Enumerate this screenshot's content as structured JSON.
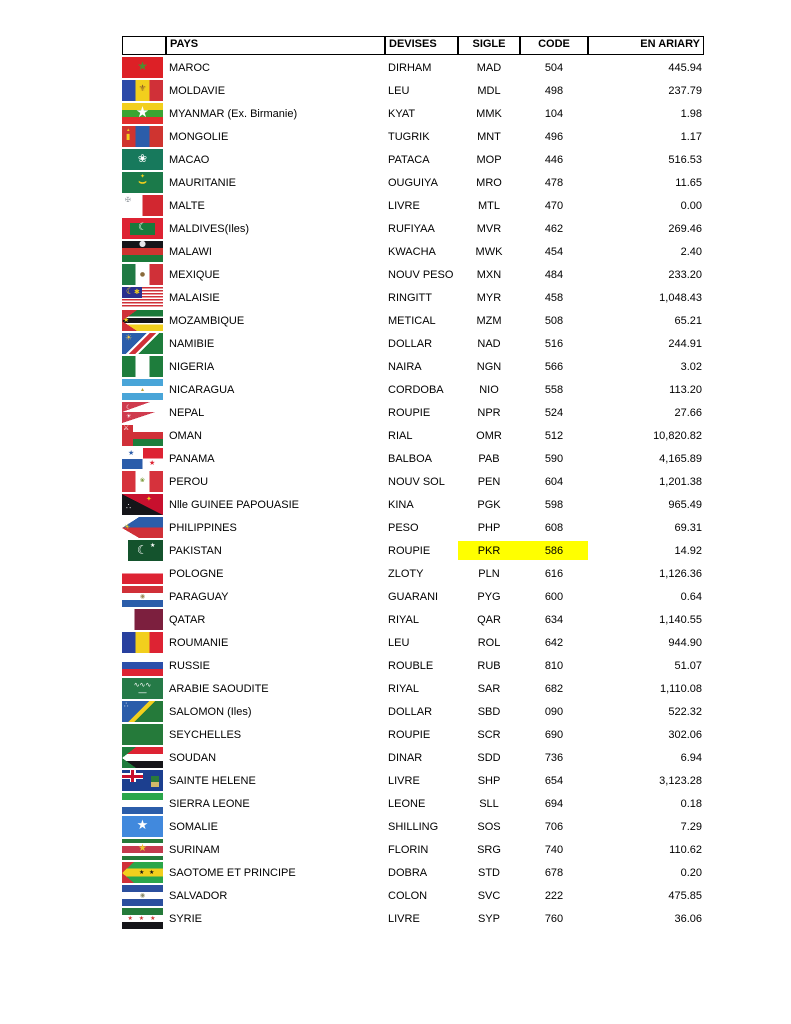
{
  "table": {
    "headers": {
      "flag": "",
      "pays": "PAYS",
      "devises": "DEVISES",
      "sigle": "SIGLE",
      "code": "CODE",
      "ariary": "EN ARIARY"
    },
    "highlight_color": "#ffff00",
    "rows": [
      {
        "pays": "MAROC",
        "devise": "DIRHAM",
        "sigle": "MAD",
        "code": "504",
        "ariary": "445.94",
        "flag": {
          "css": "background:#dd2026",
          "emblems": [
            {
              "ch": "★",
              "css": "color:#4a8f2f;font-size:12px;left:0;right:0;top:3px;text-align:center"
            }
          ]
        }
      },
      {
        "pays": "MOLDAVIE",
        "devise": "LEU",
        "sigle": "MDL",
        "code": "498",
        "ariary": "237.79",
        "flag": {
          "css": "background:linear-gradient(90deg,#2b49a8 0 33%,#f2cf1d 33% 67%,#d03038 67%)",
          "emblems": [
            {
              "ch": "⚜",
              "css": "color:#8a5a2a;font-size:9px;left:0;right:0;top:5px;text-align:center"
            }
          ]
        }
      },
      {
        "pays": "MYANMAR (Ex. Birmanie)",
        "devise": "KYAT",
        "sigle": "MMK",
        "code": "104",
        "ariary": "1.98",
        "flag": {
          "css": "background:linear-gradient(#f2cf1d 0 33%,#3aa432 33% 67%,#e32d2d 67%)",
          "emblems": [
            {
              "ch": "★",
              "css": "color:#fff;font-size:15px;left:0;right:0;top:2px;text-align:center"
            }
          ]
        }
      },
      {
        "pays": "MONGOLIE",
        "devise": "TUGRIK",
        "sigle": "MNT",
        "code": "496",
        "ariary": "1.17",
        "flag": {
          "css": "background:linear-gradient(90deg,#cf3430 0 33%,#2b5daa 33% 67%,#cf3430 67%)",
          "emblems": [
            {
              "ch": "▮",
              "css": "color:#f2cf1d;font-size:8px;left:4px;top:7px"
            },
            {
              "ch": "▴",
              "css": "color:#f2cf1d;font-size:5px;left:5px;top:2px"
            }
          ]
        }
      },
      {
        "pays": "MACAO",
        "devise": "PATACA",
        "sigle": "MOP",
        "code": "446",
        "ariary": "516.53",
        "flag": {
          "css": "background:#17795c",
          "emblems": [
            {
              "ch": "❀",
              "css": "color:#fff;font-size:11px;left:0;right:0;top:4px;text-align:center"
            }
          ]
        }
      },
      {
        "pays": "MAURITANIE",
        "devise": "OUGUIYA",
        "sigle": "MRO",
        "code": "478",
        "ariary": "11.65",
        "flag": {
          "css": "background:#1b7a4a",
          "emblems": [
            {
              "ch": "⌣",
              "css": "color:#f2cf1d;font-size:13px;font-weight:700;left:0;right:0;top:4px;text-align:center"
            },
            {
              "ch": "✦",
              "css": "color:#f2cf1d;font-size:6px;left:0;right:0;top:2px;text-align:center"
            }
          ]
        }
      },
      {
        "pays": "MALTE",
        "devise": "LIVRE",
        "sigle": "MTL",
        "code": "470",
        "ariary": "0.00",
        "flag": {
          "css": "background:linear-gradient(90deg,#fff 0 50%,#d22730 50%)",
          "emblems": [
            {
              "ch": "✠",
              "css": "color:#9aa0a6;font-size:7px;left:3px;top:2px"
            }
          ]
        }
      },
      {
        "pays": "MALDIVES(Iles)",
        "devise": "RUFIYAA",
        "sigle": "MVR",
        "code": "462",
        "ariary": "269.46",
        "flag": {
          "css": "background:linear-gradient(#187a3c,#187a3c) 50% 50%/25px 12px no-repeat,linear-gradient(#dd2333,#dd2333)",
          "emblems": [
            {
              "ch": "☾",
              "css": "color:#fff;font-size:10px;left:0;right:0;top:5px;text-align:center"
            }
          ]
        }
      },
      {
        "pays": "MALAWI",
        "devise": "KWACHA",
        "sigle": "MWK",
        "code": "454",
        "ariary": "2.40",
        "flag": {
          "css": "background:linear-gradient(#151519 0 33%,#cf3430 33% 67%,#1b7a3a 67%)",
          "emblems": [
            {
              "ch": "●",
              "css": "color:#e6e6ea;font-size:8px;left:0;right:0;top:-1px;text-align:center"
            }
          ]
        }
      },
      {
        "pays": "MEXIQUE",
        "devise": "NOUV PESO",
        "sigle": "MXN",
        "code": "484",
        "ariary": "233.20",
        "flag": {
          "css": "background:linear-gradient(90deg,#207a44 0 33%,#fff 33% 67%,#d03038 67%)",
          "emblems": [
            {
              "ch": "●",
              "css": "color:#8a6a3a;font-size:6px;left:0;right:0;top:8px;text-align:center"
            }
          ]
        }
      },
      {
        "pays": "MALAISIE",
        "devise": "RINGITT",
        "sigle": "MYR",
        "code": "458",
        "ariary": "1,048.43",
        "flag": {
          "css": "background:linear-gradient(#2b2f8f,#2b2f8f) 0 0/20px 11px no-repeat,repeating-linear-gradient(#d03038 0 1.5px,#fff 1.5px 3px)",
          "emblems": [
            {
              "ch": "☾",
              "css": "color:#f2cf1d;font-size:9px;left:4px;top:1px"
            },
            {
              "ch": "✱",
              "css": "color:#f2cf1d;font-size:7px;left:12px;top:2px"
            }
          ]
        }
      },
      {
        "pays": "MOZAMBIQUE",
        "devise": "METICAL",
        "sigle": "MZM",
        "code": "508",
        "ariary": "65.21",
        "flag": {
          "css": "background:linear-gradient(to bottom right,#d03038 50%,transparent 50.5%) 0 0/15px 11px no-repeat,linear-gradient(to top right,#d03038 50%,transparent 50.5%) 0 11px/15px 10px no-repeat,linear-gradient(#1b7a3a 0 30%,#fff 30% 37%,#151519 37% 63%,#fff 63% 70%,#f2cf1d 70%)",
          "emblems": [
            {
              "ch": "★",
              "css": "color:#f2cf1d;font-size:7px;left:1px;top:7px"
            }
          ]
        }
      },
      {
        "pays": "NAMIBIE",
        "devise": "DOLLAR",
        "sigle": "NAD",
        "code": "516",
        "ariary": "244.91",
        "flag": {
          "css": "background:linear-gradient(135deg,#2b5daa 0 40%,#fff 40% 45%,#d03038 45% 55%,#fff 55% 60%,#1e7d3c 60%)",
          "emblems": [
            {
              "ch": "☀",
              "css": "color:#f7c948;font-size:8px;left:3px;top:1px"
            }
          ]
        }
      },
      {
        "pays": "NIGERIA",
        "devise": "NAIRA",
        "sigle": "NGN",
        "code": "566",
        "ariary": "3.02",
        "flag": {
          "css": "background:linear-gradient(90deg,#1e7d3c 0 33%,#fff 33% 67%,#1e7d3c 67%)"
        }
      },
      {
        "pays": "NICARAGUA",
        "devise": "CORDOBA",
        "sigle": "NIO",
        "code": "558",
        "ariary": "113.20",
        "flag": {
          "css": "background:linear-gradient(#49a5d8 0 33%,#fff 33% 67%,#49a5d8 67%)",
          "emblems": [
            {
              "ch": "▴",
              "css": "color:#b8a23a;font-size:6px;left:0;right:0;top:8px;text-align:center"
            }
          ]
        }
      },
      {
        "pays": "NEPAL",
        "devise": "ROUPIE",
        "sigle": "NPR",
        "code": "524",
        "ariary": "27.66",
        "flag": {
          "css": "background:linear-gradient(to bottom right,#cf3b4e 50%,transparent 50.5%) 0 0/28px 10px no-repeat,linear-gradient(to bottom right,#cf3b4e 50%,transparent 50.5%) 0 10px/33px 11px no-repeat,linear-gradient(#fff,#fff)",
          "emblems": [
            {
              "ch": "☾",
              "css": "color:#fff;font-size:6px;left:4px;top:3px"
            },
            {
              "ch": "☀",
              "css": "color:#fff;font-size:6px;left:4px;top:12px"
            }
          ]
        }
      },
      {
        "pays": "OMAN",
        "devise": "RIAL",
        "sigle": "OMR",
        "code": "512",
        "ariary": "10,820.82",
        "flag": {
          "css": "background:linear-gradient(#d03038,#d03038) 0 0/11px 21px no-repeat,linear-gradient(#fff 0 33%,#d03038 33% 67%,#1e7d3c 67%)",
          "emblems": [
            {
              "ch": "⚔",
              "css": "color:#fff;font-size:7px;left:1px;top:0"
            }
          ]
        }
      },
      {
        "pays": "PANAMA",
        "devise": "BALBOA",
        "sigle": "PAB",
        "code": "590",
        "ariary": "4,165.89",
        "flag": {
          "css": "background:linear-gradient(#dd2333,#dd2333) 100% 0/50% 50% no-repeat,linear-gradient(#2b5daa,#2b5daa) 0 100%/50% 50% no-repeat,linear-gradient(#fff,#fff)",
          "emblems": [
            {
              "ch": "★",
              "css": "color:#2b5daa;font-size:7px;left:6px;top:2px"
            },
            {
              "ch": "★",
              "css": "color:#dd2333;font-size:7px;left:27px;top:12px"
            }
          ]
        }
      },
      {
        "pays": "PEROU",
        "devise": "NOUV SOL",
        "sigle": "PEN",
        "code": "604",
        "ariary": "1,201.38",
        "flag": {
          "css": "background:linear-gradient(90deg,#d6323c 0 33%,#fff 33% 67%,#d6323c 67%)",
          "emblems": [
            {
              "ch": "❀",
              "css": "color:#7a9a3a;font-size:6px;left:0;right:0;top:7px;text-align:center"
            }
          ]
        }
      },
      {
        "pays": "Nlle GUINEE PAPOUASIE",
        "devise": "KINA",
        "sigle": "PGK",
        "code": "598",
        "ariary": "965.49",
        "flag": {
          "css": "background:linear-gradient(to bottom left,#c8102e 50%,#151519 50.5%)",
          "emblems": [
            {
              "ch": "∴",
              "css": "color:#fff;font-size:8px;left:4px;top:9px"
            },
            {
              "ch": "✦",
              "css": "color:#f2cf1d;font-size:7px;left:24px;top:2px"
            }
          ]
        }
      },
      {
        "pays": "PHILIPPINES",
        "devise": "PESO",
        "sigle": "PHP",
        "code": "608",
        "ariary": "69.31",
        "flag": {
          "css": "background:linear-gradient(to bottom right,#fff 50%,transparent 50.5%) 0 0/17px 11px no-repeat,linear-gradient(to top right,#fff 50%,transparent 50.5%) 0 11px/17px 10px no-repeat,linear-gradient(#2b5daa 0 50%,#d03038 50%)",
          "emblems": [
            {
              "ch": "☀",
              "css": "color:#f2cf1d;font-size:7px;left:2px;top:7px"
            }
          ]
        }
      },
      {
        "pays": "PAKISTAN",
        "devise": "ROUPIE",
        "sigle": "PKR",
        "code": "586",
        "ariary": "14.92",
        "hl": true,
        "flag": {
          "css": "background:linear-gradient(90deg,#fff 0 15%,#14532d 15%)",
          "emblems": [
            {
              "ch": "☾",
              "css": "color:#fff;font-size:12px;left:15px;top:4px"
            },
            {
              "ch": "★",
              "css": "color:#fff;font-size:6px;left:28px;top:3px"
            }
          ]
        }
      },
      {
        "pays": "POLOGNE",
        "devise": "ZLOTY",
        "sigle": "PLN",
        "code": "616",
        "ariary": "1,126.36",
        "flag": {
          "css": "background:linear-gradient(#fff 0 50%,#dd2333 50%)"
        }
      },
      {
        "pays": "PARAGUAY",
        "devise": "GUARANI",
        "sigle": "PYG",
        "code": "600",
        "ariary": "0.64",
        "flag": {
          "css": "background:linear-gradient(#d03038 0 33%,#fff 33% 67%,#2b5daa 67%)",
          "emblems": [
            {
              "ch": "◉",
              "css": "color:#9a8a5a;font-size:6px;left:0;right:0;top:8px;text-align:center"
            }
          ]
        }
      },
      {
        "pays": "QATAR",
        "devise": "RIYAL",
        "sigle": "QAR",
        "code": "634",
        "ariary": "1,140.55",
        "flag": {
          "css": "background:linear-gradient(90deg,#fff 0 30%,#7c1f3e 30%)"
        }
      },
      {
        "pays": "ROUMANIE",
        "devise": "LEU",
        "sigle": "ROL",
        "code": "642",
        "ariary": "944.90",
        "flag": {
          "css": "background:linear-gradient(90deg,#28409e 0 33%,#f2cf1d 33% 67%,#dd2333 67%)"
        }
      },
      {
        "pays": "RUSSIE",
        "devise": "ROUBLE",
        "sigle": "RUB",
        "code": "810",
        "ariary": "51.07",
        "flag": {
          "css": "background:linear-gradient(#fff 0 33%,#2b4faa 33% 67%,#dd2333 67%)"
        }
      },
      {
        "pays": "ARABIE SAOUDITE",
        "devise": "RIYAL",
        "sigle": "SAR",
        "code": "682",
        "ariary": "1,110.08",
        "flag": {
          "css": "background:#257a47",
          "emblems": [
            {
              "ch": "∿∿∿",
              "css": "color:#fff;font-size:7px;left:0;right:0;top:4px;text-align:center"
            },
            {
              "ch": "—",
              "css": "color:#fff;font-size:9px;left:0;right:0;top:11px;text-align:center"
            }
          ]
        }
      },
      {
        "pays": "SALOMON (Iles)",
        "devise": "DOLLAR",
        "sigle": "SBD",
        "code": "090",
        "ariary": "522.32",
        "flag": {
          "css": "background:linear-gradient(135deg,#2b5daa 0 44%,#f2cf1d 44% 54%,#257a3a 54%)",
          "emblems": [
            {
              "ch": "∴",
              "css": "color:#fff;font-size:7px;left:2px;top:1px"
            }
          ]
        }
      },
      {
        "pays": "SEYCHELLES",
        "devise": "ROUPIE",
        "sigle": "SCR",
        "code": "690",
        "ariary": "302.06",
        "flag": {
          "css": "background:conic-gradient(from 270deg at 0% 100%,#28409e 0 18deg,#f2cf1d 18deg 36deg,#dd2333 36deg 54deg,#fff 54deg 72deg,#257a3a 72deg 90deg)"
        }
      },
      {
        "pays": "SOUDAN",
        "devise": "DINAR",
        "sigle": "SDD",
        "code": "736",
        "ariary": "6.94",
        "flag": {
          "css": "background:linear-gradient(to bottom right,#1e7d3c 50%,transparent 50.5%) 0 0/14px 11px no-repeat,linear-gradient(to top right,#1e7d3c 50%,transparent 50.5%) 0 11px/14px 10px no-repeat,linear-gradient(#dd2333 0 33%,#fff 33% 67%,#151519 67%)"
        }
      },
      {
        "pays": "SAINTE HELENE",
        "devise": "LIVRE",
        "sigle": "SHP",
        "code": "654",
        "ariary": "3,123.28",
        "flag": {
          "css": "background:linear-gradient(#c8102e,#c8102e) 9px 0/3px 12px no-repeat,linear-gradient(#c8102e,#c8102e) 0 4.5px/21px 3px no-repeat,linear-gradient(#fff,#fff) 7.5px 0/6px 12px no-repeat,linear-gradient(#fff,#fff) 0 3px/21px 6px no-repeat,linear-gradient(#2a7a3a 0 55%,#d2b86a 55%) 29px 6px/8px 11px no-repeat,linear-gradient(#1c3f8f,#1c3f8f)"
        }
      },
      {
        "pays": "SIERRA LEONE",
        "devise": "LEONE",
        "sigle": "SLL",
        "code": "694",
        "ariary": "0.18",
        "flag": {
          "css": "background:linear-gradient(#2aa64a 0 33%,#fff 33% 67%,#2b5daa 67%)"
        }
      },
      {
        "pays": "SOMALIE",
        "devise": "SHILLING",
        "sigle": "SOS",
        "code": "706",
        "ariary": "7.29",
        "flag": {
          "css": "background:#4189dd",
          "emblems": [
            {
              "ch": "★",
              "css": "color:#fff;font-size:13px;left:0;right:0;top:3px;text-align:center"
            }
          ]
        }
      },
      {
        "pays": "SURINAM",
        "devise": "FLORIN",
        "sigle": "SRG",
        "code": "740",
        "ariary": "110.62",
        "flag": {
          "css": "background:linear-gradient(#257a3a 0 19%,#fff 19% 33%,#c43a4e 33% 67%,#fff 67% 81%,#257a3a 81%)",
          "emblems": [
            {
              "ch": "★",
              "css": "color:#edc531;font-size:10px;left:0;right:0;top:5px;text-align:center"
            }
          ]
        }
      },
      {
        "pays": "SAOTOME ET PRINCIPE",
        "devise": "DOBRA",
        "sigle": "STD",
        "code": "678",
        "ariary": "0.20",
        "flag": {
          "css": "background:linear-gradient(to bottom right,#d03038 50%,transparent 50.5%) 0 0/12px 11px no-repeat,linear-gradient(to top right,#d03038 50%,transparent 50.5%) 0 11px/12px 10px no-repeat,linear-gradient(#2aa64a 0 30%,#f2cf1d 30% 70%,#2aa64a 70%)",
          "emblems": [
            {
              "ch": "★",
              "css": "color:#151519;font-size:6px;left:17px;top:8px"
            },
            {
              "ch": "★",
              "css": "color:#151519;font-size:6px;left:27px;top:8px"
            }
          ]
        }
      },
      {
        "pays": "SALVADOR",
        "devise": "COLON",
        "sigle": "SVC",
        "code": "222",
        "ariary": "475.85",
        "flag": {
          "css": "background:linear-gradient(#2b4f9e 0 33%,#fff 33% 67%,#2b4f9e 67%)",
          "emblems": [
            {
              "ch": "◉",
              "css": "color:#8a8a6a;font-size:6px;left:0;right:0;top:8px;text-align:center"
            }
          ]
        }
      },
      {
        "pays": "SYRIE",
        "devise": "LIVRE",
        "sigle": "SYP",
        "code": "760",
        "ariary": "36.06",
        "flag": {
          "css": "background:linear-gradient(#257a3a 0 33%,#fff 33% 67%,#151519 67%)",
          "emblems": [
            {
              "ch": "★ ★ ★",
              "css": "color:#cf3430;font-size:6px;left:0;right:0;top:8px;text-align:center;letter-spacing:2px"
            }
          ]
        }
      }
    ]
  }
}
